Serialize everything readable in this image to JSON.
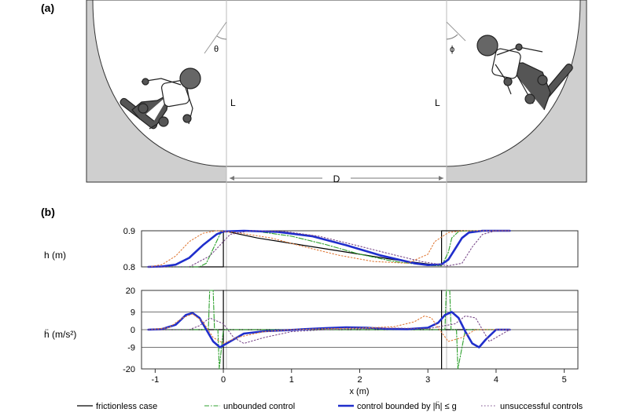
{
  "panels": {
    "a": {
      "label": "(a)",
      "theta": "θ",
      "phi": "ϕ",
      "L_left": "L",
      "L_right": "L",
      "D": "D"
    },
    "b": {
      "label": "(b)"
    }
  },
  "colors": {
    "frictionless": "#000000",
    "unbounded": "#2ca02c",
    "bounded": "#1f2ecc",
    "unsuccessful_1": "#e07b39",
    "unsuccessful_2": "#7a4a8a",
    "ramp_fill": "#cfcfcf",
    "guide": "#bbbbbb"
  },
  "legend": [
    {
      "label": "frictionless case",
      "style": "solid-thin",
      "color": "#000000"
    },
    {
      "label": "unbounded control",
      "style": "dashdot",
      "color": "#2ca02c"
    },
    {
      "label": "control bounded by |ḧ| ≤ g",
      "style": "solid-thick",
      "color": "#1f2ecc"
    },
    {
      "label": "unsuccessful controls",
      "style": "dotted",
      "color": "#7a4a8a"
    }
  ],
  "chart_data": [
    {
      "type": "line",
      "ylabel": "h (m)",
      "xlim": [
        -1.2,
        5.2
      ],
      "ylim": [
        0.8,
        0.9
      ],
      "yticks": [
        "0.8",
        "0.9"
      ],
      "series": [
        {
          "name": "frictionless case",
          "x": [
            -1.1,
            0.0,
            0.0,
            0.5,
            1.0,
            1.5,
            2.0,
            2.5,
            3.0,
            3.2,
            3.2,
            3.5,
            4.2
          ],
          "y": [
            0.8,
            0.8,
            0.9,
            0.88,
            0.865,
            0.85,
            0.835,
            0.82,
            0.808,
            0.804,
            0.9,
            0.9,
            0.9
          ]
        },
        {
          "name": "unbounded control",
          "x": [
            -1.1,
            -0.35,
            -0.25,
            -0.15,
            -0.05,
            0.0,
            0.5,
            1.0,
            1.5,
            2.0,
            2.5,
            3.0,
            3.2,
            3.3,
            3.35,
            3.45,
            3.6,
            4.2
          ],
          "y": [
            0.8,
            0.8,
            0.81,
            0.85,
            0.89,
            0.9,
            0.898,
            0.885,
            0.862,
            0.835,
            0.815,
            0.804,
            0.803,
            0.84,
            0.88,
            0.898,
            0.9,
            0.9
          ]
        },
        {
          "name": "control bounded by |ḧ| ≤ g",
          "x": [
            -1.1,
            -0.9,
            -0.7,
            -0.5,
            -0.3,
            -0.1,
            0.0,
            0.3,
            0.8,
            1.3,
            1.8,
            2.3,
            2.8,
            3.0,
            3.2,
            3.3,
            3.4,
            3.5,
            3.6,
            3.8,
            4.2
          ],
          "y": [
            0.8,
            0.801,
            0.806,
            0.825,
            0.86,
            0.89,
            0.898,
            0.9,
            0.897,
            0.885,
            0.86,
            0.832,
            0.81,
            0.805,
            0.807,
            0.82,
            0.85,
            0.88,
            0.895,
            0.9,
            0.9
          ]
        },
        {
          "name": "unsuccessful control 1",
          "x": [
            -1.1,
            -0.9,
            -0.7,
            -0.5,
            -0.3,
            -0.1,
            0.2,
            0.7,
            1.2,
            1.7,
            2.2,
            2.7,
            3.0,
            3.1,
            3.3,
            3.5,
            3.7,
            4.2
          ],
          "y": [
            0.8,
            0.806,
            0.83,
            0.87,
            0.893,
            0.9,
            0.895,
            0.88,
            0.855,
            0.832,
            0.815,
            0.81,
            0.835,
            0.87,
            0.895,
            0.9,
            0.9,
            0.9
          ]
        },
        {
          "name": "unsuccessful control 2",
          "x": [
            -1.1,
            -0.5,
            -0.2,
            0.0,
            0.1,
            0.4,
            0.9,
            1.4,
            1.9,
            2.4,
            2.9,
            3.3,
            3.5,
            3.65,
            3.8,
            4.0,
            4.2
          ],
          "y": [
            0.8,
            0.8,
            0.83,
            0.87,
            0.89,
            0.9,
            0.898,
            0.885,
            0.862,
            0.838,
            0.815,
            0.803,
            0.81,
            0.855,
            0.89,
            0.9,
            0.9
          ]
        }
      ]
    },
    {
      "type": "line",
      "ylabel": "ḧ (m/s²)",
      "xlabel": "x (m)",
      "xlim": [
        -1.2,
        5.2
      ],
      "ylim": [
        -20,
        20
      ],
      "yticks": [
        "-20",
        "-9",
        "0",
        "9",
        "20"
      ],
      "xticks": [
        "-1",
        "0",
        "1",
        "2",
        "3",
        "4",
        "5"
      ],
      "grid_y": [
        -9,
        0,
        9
      ],
      "series": [
        {
          "name": "frictionless case",
          "x": [
            -1.1,
            0.0,
            0.0,
            0.0,
            0.0,
            3.2,
            3.2,
            3.2,
            3.2,
            4.2
          ],
          "y": [
            0,
            0,
            20,
            -20,
            0,
            0,
            -20,
            20,
            0,
            0
          ]
        },
        {
          "name": "unbounded control",
          "x": [
            -1.1,
            -0.35,
            -0.22,
            -0.2,
            -0.15,
            -0.13,
            -0.08,
            -0.06,
            0.0,
            2.0,
            3.2,
            3.25,
            3.27,
            3.32,
            3.34,
            3.42,
            3.44,
            3.55,
            4.2
          ],
          "y": [
            0,
            0,
            0,
            20,
            20,
            0,
            0,
            -20,
            0,
            0,
            0,
            0,
            20,
            20,
            0,
            0,
            -20,
            0,
            0
          ]
        },
        {
          "name": "control bounded by |ḧ| ≤ g",
          "x": [
            -1.1,
            -0.9,
            -0.7,
            -0.55,
            -0.45,
            -0.35,
            -0.25,
            -0.15,
            -0.05,
            0.05,
            0.3,
            0.6,
            0.9,
            1.2,
            1.5,
            1.8,
            2.1,
            2.4,
            2.7,
            3.0,
            3.15,
            3.25,
            3.35,
            3.45,
            3.55,
            3.65,
            3.75,
            3.85,
            4.0,
            4.2
          ],
          "y": [
            0,
            0.3,
            2.5,
            7.5,
            8.5,
            6,
            0,
            -6,
            -9,
            -7,
            -2,
            -0.8,
            -0.3,
            0.3,
            0.8,
            1.2,
            1.0,
            0.4,
            0.3,
            1.0,
            3.5,
            7.5,
            9,
            6,
            -1,
            -7,
            -9,
            -5,
            0,
            0
          ]
        },
        {
          "name": "unsuccessful control 1",
          "x": [
            -1.1,
            -0.8,
            -0.6,
            -0.45,
            -0.3,
            -0.15,
            0.0,
            0.2,
            0.6,
            1.0,
            1.5,
            2.0,
            2.5,
            2.8,
            2.95,
            3.05,
            3.15,
            3.3,
            3.5,
            3.7,
            4.2
          ],
          "y": [
            0,
            1,
            6,
            8,
            4,
            -4,
            -7,
            -4,
            -1,
            0,
            0.5,
            0.8,
            1.5,
            4,
            7,
            6,
            1,
            -6,
            -4,
            0,
            0
          ]
        },
        {
          "name": "unsuccessful control 2",
          "x": [
            -1.1,
            -0.5,
            -0.35,
            -0.2,
            0.0,
            0.15,
            0.3,
            0.6,
            1.0,
            1.5,
            2.0,
            2.5,
            3.0,
            3.4,
            3.55,
            3.7,
            3.8,
            3.9,
            4.0,
            4.2
          ],
          "y": [
            0,
            0,
            2,
            6,
            3,
            -4,
            -7,
            -4,
            -1,
            0,
            0.5,
            0.8,
            0.5,
            3,
            7,
            6,
            0,
            -6,
            -4,
            0
          ]
        }
      ]
    }
  ]
}
